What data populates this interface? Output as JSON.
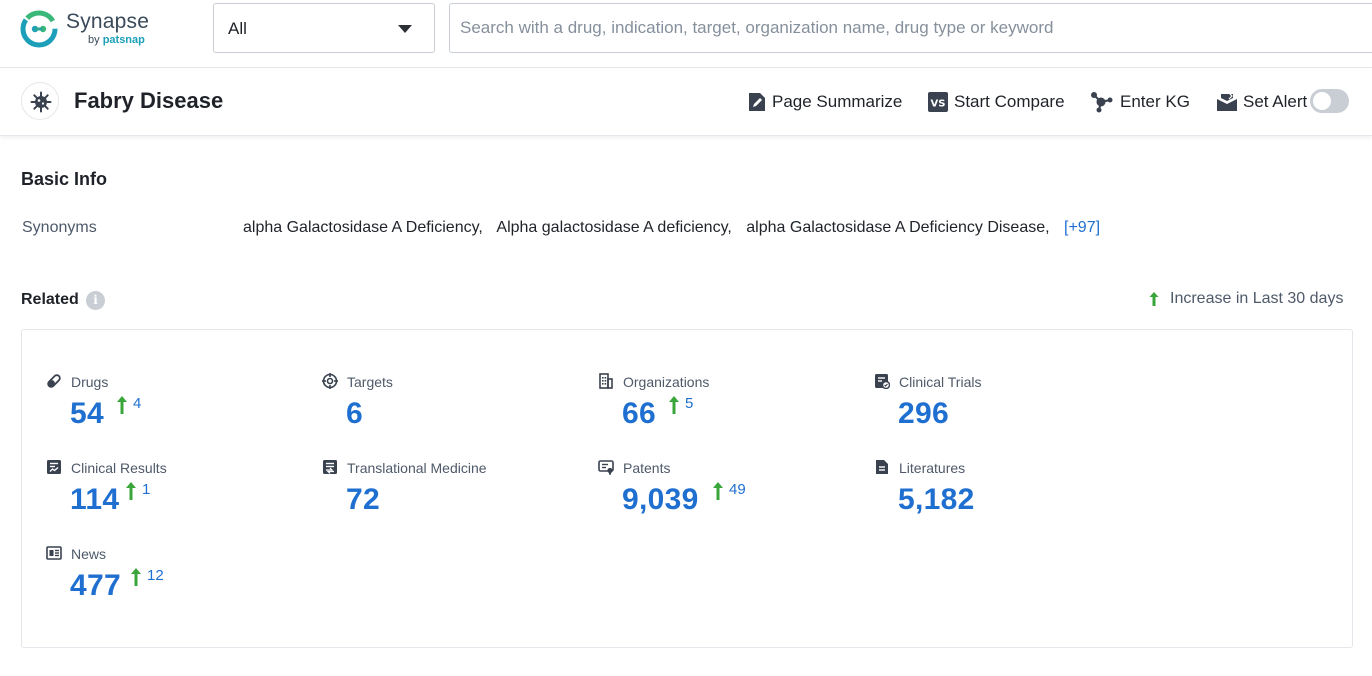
{
  "header": {
    "logo": {
      "name": "Synapse",
      "by": "by",
      "brand": "patsnap"
    },
    "scope": {
      "selected": "All"
    },
    "search": {
      "placeholder": "Search with a drug, indication, target, organization name, drug type or keyword"
    }
  },
  "titlebar": {
    "title": "Fabry Disease",
    "actions": {
      "summarize": "Page Summarize",
      "compare": "Start Compare",
      "kg": "Enter KG",
      "alert": "Set Alert"
    },
    "alert_enabled": false
  },
  "basic_info": {
    "title": "Basic Info",
    "synonyms_label": "Synonyms",
    "synonyms": [
      "alpha Galactosidase A Deficiency,",
      "Alpha galactosidase A deficiency,",
      "alpha Galactosidase A Deficiency Disease,"
    ],
    "more": "[+97]"
  },
  "related": {
    "title": "Related",
    "legend": "Increase in Last 30 days",
    "stats": {
      "drugs": {
        "label": "Drugs",
        "value": "54",
        "increase": "4"
      },
      "targets": {
        "label": "Targets",
        "value": "6"
      },
      "organizations": {
        "label": "Organizations",
        "value": "66",
        "increase": "5"
      },
      "clinical_trials": {
        "label": "Clinical Trials",
        "value": "296"
      },
      "clinical_results": {
        "label": "Clinical Results",
        "value": "114",
        "increase": "1"
      },
      "translational": {
        "label": "Translational Medicine",
        "value": "72"
      },
      "patents": {
        "label": "Patents",
        "value": "9,039",
        "increase": "49"
      },
      "literatures": {
        "label": "Literatures",
        "value": "5,182"
      },
      "news": {
        "label": "News",
        "value": "477",
        "increase": "12"
      }
    }
  },
  "colors": {
    "accent": "#1f6fd0",
    "increase": "#3aa53a",
    "brand_teal": "#1c9fb8"
  }
}
